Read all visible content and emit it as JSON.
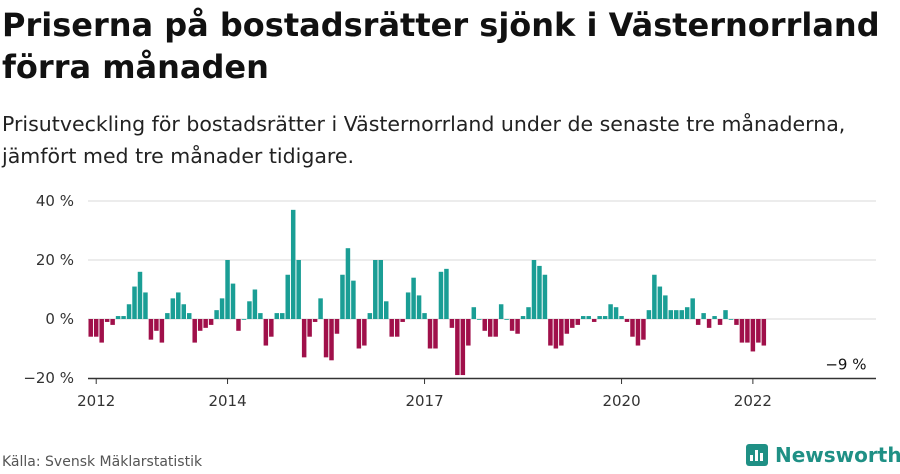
{
  "title": "Priserna på bostadsrätter sjönk i Västernorrland förra månaden",
  "subtitle": "Prisutveckling för bostadsrätter i Västernorrland under de senaste tre månaderna, jämfört med tre månader tidigare.",
  "source": "Källa: Svensk Mäklarstatistik",
  "brand": "Newsworthy",
  "colors": {
    "positive": "#1a9e95",
    "negative": "#a0104a",
    "axis": "#333333",
    "grid": "#d9d9d9",
    "brand": "#1f9085"
  },
  "chart_data": {
    "type": "bar",
    "title": "Priserna på bostadsrätter sjönk i Västernorrland förra månaden",
    "subtitle": "Prisutveckling för bostadsrätter i Västernorrland under de senaste tre månaderna, jämfört med tre månader tidigare.",
    "xlabel": "",
    "ylabel": "",
    "ylim": [
      -20,
      40
    ],
    "yticks": [
      -20,
      0,
      20,
      40
    ],
    "ytick_labels": [
      "−20 %",
      "0 %",
      "20 %",
      "40 %"
    ],
    "xticks": [
      2012,
      2014,
      2017,
      2020,
      2022
    ],
    "xlim": [
      2011.875,
      2023.875
    ],
    "grid": true,
    "legend": "none",
    "start": "2011-12",
    "values": [
      -6,
      -6,
      -8,
      -1,
      -2,
      1,
      1,
      5,
      11,
      16,
      9,
      -7,
      -4,
      -8,
      2,
      7,
      9,
      5,
      2,
      -8,
      -4,
      -3,
      -2,
      3,
      7,
      20,
      12,
      -4,
      0,
      6,
      10,
      2,
      -9,
      -6,
      2,
      2,
      15,
      37,
      20,
      -13,
      -6,
      -1,
      7,
      -13,
      -14,
      -5,
      15,
      24,
      13,
      -10,
      -9,
      2,
      20,
      20,
      6,
      -6,
      -6,
      -1,
      9,
      14,
      8,
      2,
      -10,
      -10,
      16,
      17,
      -3,
      -19,
      -19,
      -9,
      4,
      0,
      -4,
      -6,
      -6,
      5,
      0,
      -4,
      -5,
      1,
      4,
      20,
      18,
      15,
      -9,
      -10,
      -9,
      -5,
      -3,
      -2,
      1,
      1,
      -1,
      1,
      1,
      5,
      4,
      1,
      -1,
      -6,
      -9,
      -7,
      3,
      15,
      11,
      8,
      3,
      3,
      3,
      4,
      7,
      -2,
      2,
      -3,
      1,
      -2,
      3,
      0,
      -2,
      -8,
      -8,
      -11,
      -8,
      -9
    ],
    "annotations": [
      {
        "text": "−9 %",
        "x": "2023-06",
        "y": -9
      }
    ]
  }
}
